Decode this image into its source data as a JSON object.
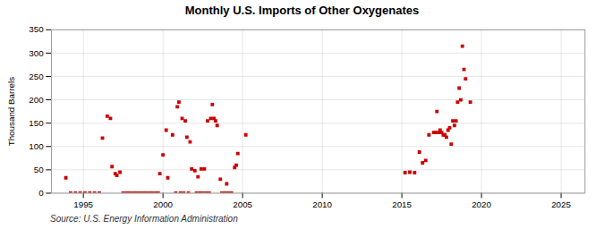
{
  "chart_data": {
    "type": "scatter",
    "title": "Monthly U.S. Imports of Other Oxygenates",
    "ylabel": "Thousand Barrels",
    "annotations": [
      "Source: U.S. Energy Information Administration"
    ],
    "color": "#cc0000",
    "marker": "square",
    "grid": true,
    "xlim": [
      1993.0,
      2026.5
    ],
    "ylim": [
      0,
      350
    ],
    "xticks": [
      1995,
      2000,
      2005,
      2010,
      2015,
      2020,
      2025
    ],
    "yticks": [
      0,
      50,
      100,
      150,
      200,
      250,
      300,
      350
    ],
    "x": [
      1993.9,
      1996.2,
      1996.5,
      1996.7,
      1996.8,
      1997.0,
      1997.1,
      1997.3,
      1999.8,
      2000.0,
      2000.2,
      2000.3,
      2000.6,
      2000.9,
      2001.0,
      2001.2,
      2001.4,
      2001.5,
      2001.7,
      2001.8,
      2002.0,
      2002.2,
      2002.4,
      2002.6,
      2002.8,
      2003.0,
      2003.1,
      2003.2,
      2003.3,
      2003.4,
      2003.6,
      2004.0,
      2004.5,
      2004.6,
      2004.7,
      2005.2,
      1994.2,
      1994.5,
      1994.8,
      1995.1,
      1995.4,
      1995.7,
      1996.0,
      1997.5,
      1997.7,
      1997.9,
      1998.1,
      1998.3,
      1998.5,
      1998.7,
      1998.9,
      1999.1,
      1999.3,
      1999.5,
      1999.7,
      2000.8,
      2001.1,
      2001.3,
      2001.6,
      2002.1,
      2002.3,
      2002.5,
      2002.7,
      2002.9,
      2003.7,
      2003.9,
      2004.1,
      2004.3,
      2015.2,
      2015.5,
      2015.8,
      2016.1,
      2016.3,
      2016.5,
      2016.7,
      2017.0,
      2017.1,
      2017.2,
      2017.3,
      2017.4,
      2017.5,
      2017.6,
      2017.7,
      2017.8,
      2017.9,
      2018.0,
      2018.1,
      2018.2,
      2018.3,
      2018.4,
      2018.5,
      2018.6,
      2018.7,
      2018.8,
      2018.9,
      2019.0,
      2019.3
    ],
    "values": [
      33,
      118,
      165,
      160,
      57,
      42,
      38,
      45,
      42,
      82,
      135,
      33,
      125,
      185,
      195,
      160,
      155,
      120,
      110,
      52,
      48,
      35,
      52,
      52,
      155,
      160,
      190,
      160,
      155,
      145,
      30,
      20,
      55,
      60,
      85,
      125,
      0,
      0,
      0,
      0,
      0,
      0,
      0,
      0,
      0,
      0,
      0,
      0,
      0,
      0,
      0,
      0,
      0,
      0,
      0,
      0,
      0,
      0,
      0,
      0,
      0,
      0,
      0,
      0,
      0,
      0,
      0,
      0,
      44,
      45,
      44,
      88,
      65,
      70,
      125,
      130,
      130,
      175,
      130,
      135,
      130,
      125,
      125,
      120,
      135,
      140,
      105,
      155,
      145,
      155,
      195,
      225,
      200,
      315,
      265,
      245,
      195
    ]
  }
}
